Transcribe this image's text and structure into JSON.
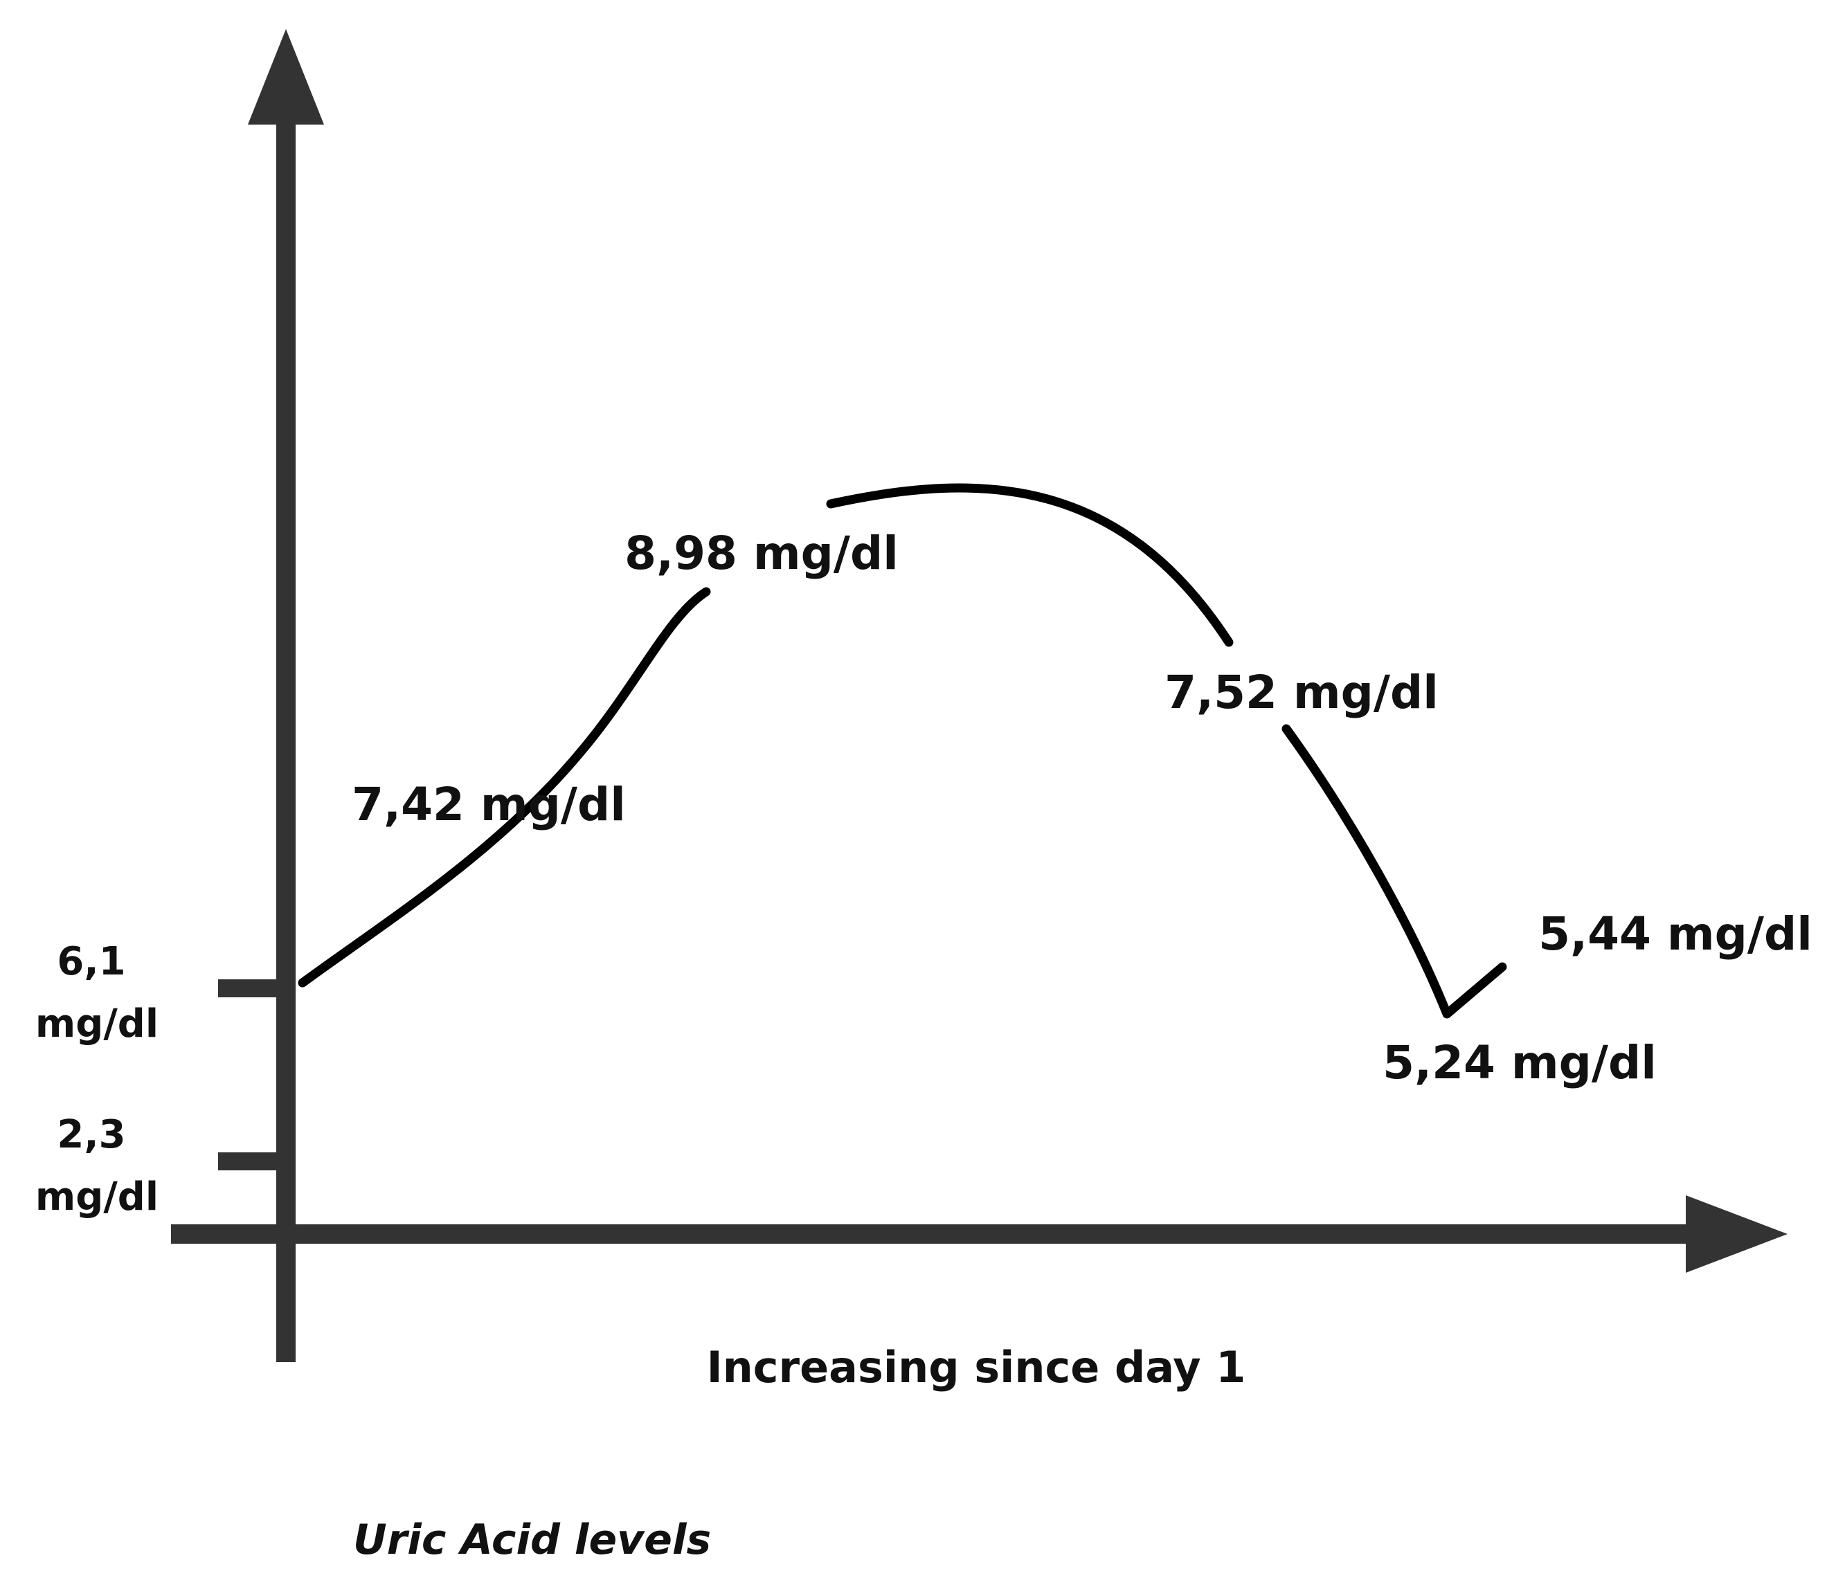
{
  "chart_data": {
    "type": "line",
    "title": "",
    "xlabel": "Increasing since day 1",
    "ylabel": "",
    "caption": "Uric Acid levels",
    "series": [
      {
        "values": [
          6.1,
          7.42,
          8.98,
          7.52,
          5.24,
          5.44
        ],
        "labels": [
          "",
          "7,42 mg/dl",
          "8,98 mg/dl",
          "7,52 mg/dl",
          "5,24 mg/dl",
          "5,44 mg/dl"
        ]
      }
    ],
    "y_ticks": [
      {
        "value": 6.1,
        "line1": "6,1",
        "line2": "mg/dl"
      },
      {
        "value": 2.3,
        "line1": "2,3",
        "line2": "mg/dl"
      }
    ],
    "grid": false,
    "legend": "none",
    "colors": {
      "axis": "#333333",
      "line": "#000000",
      "text": "#111111"
    }
  }
}
